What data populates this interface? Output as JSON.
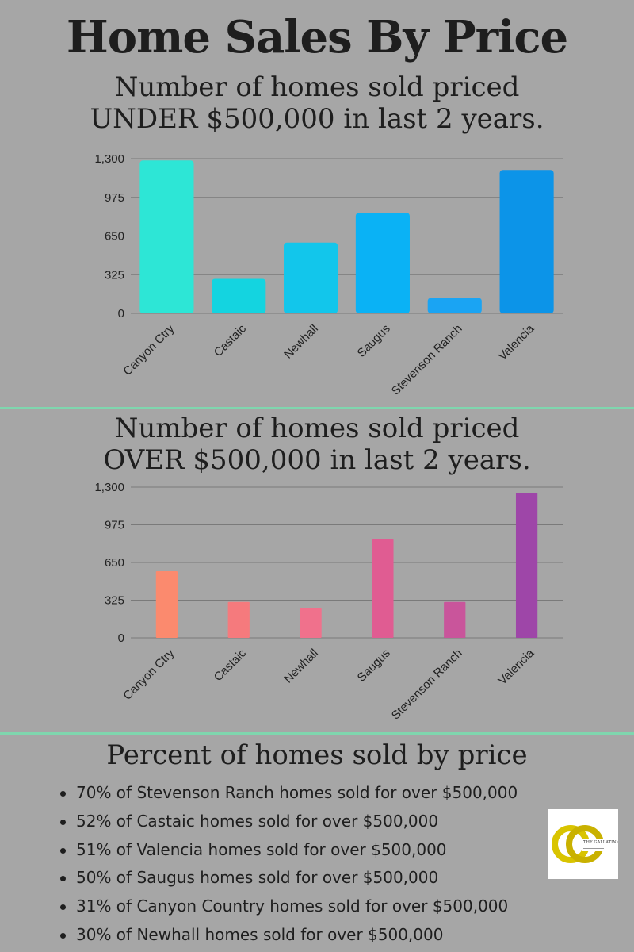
{
  "title": "Home Sales By Price",
  "subtitle1": [
    "Number of homes sold priced",
    "UNDER $500,000 in last 2 years."
  ],
  "subtitle2": [
    "Number of homes sold priced",
    "OVER $500,000 in last 2 years."
  ],
  "percent_heading": "Percent of homes sold by price",
  "bullets": [
    "70% of Stevenson Ranch homes sold for over $500,000",
    "52% of Castaic homes sold for over $500,000",
    "51% of Valencia homes sold for over $500,000",
    "50% of Saugus homes sold for over $500,000",
    "31% of Canyon Country homes sold for over $500,000",
    "30% of Newhall homes sold for over $500,000"
  ],
  "logo": {
    "text": "THE GALLATIN GROUP",
    "monogram": "GG"
  },
  "chart_data": [
    {
      "type": "bar",
      "categories": [
        "Canyon Ctry",
        "Castaic",
        "Newhall",
        "Saugus",
        "Stevenson Ranch",
        "Valencia"
      ],
      "values": [
        1285,
        290,
        595,
        845,
        130,
        1205
      ],
      "yticks": [
        "0",
        "325",
        "650",
        "975",
        "1,300"
      ],
      "ylim": [
        0,
        1300
      ],
      "grid": true,
      "colors": [
        "#2de6d6",
        "#14d4e0",
        "#12c6eb",
        "#0ab2f5",
        "#1aa4f3",
        "#0c94e8"
      ]
    },
    {
      "type": "bar",
      "categories": [
        "Canyon Ctry",
        "Castaic",
        "Newhall",
        "Saugus",
        "Stevenson Ranch",
        "Valencia"
      ],
      "values": [
        575,
        310,
        255,
        850,
        310,
        1250
      ],
      "yticks": [
        "0",
        "325",
        "650",
        "975",
        "1,300"
      ],
      "ylim": [
        0,
        1300
      ],
      "grid": true,
      "colors": [
        "#fb8a6e",
        "#f57a7d",
        "#f0718c",
        "#e05c92",
        "#c9559b",
        "#9e46a8"
      ]
    }
  ]
}
